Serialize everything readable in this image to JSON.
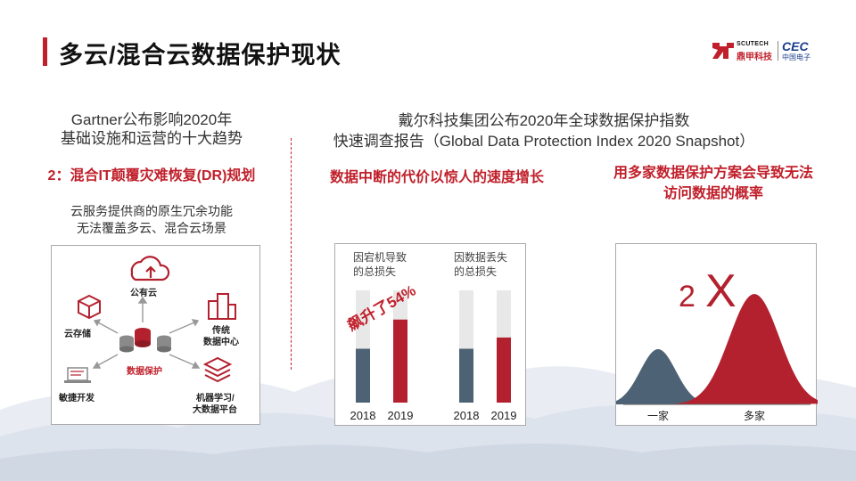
{
  "title": "多云/混合云数据保护现状",
  "logo": {
    "scutech": "SCUTECH",
    "dingjia": "鼎甲科技",
    "cec": "CEC",
    "cec_sub": "中国电子"
  },
  "left": {
    "heading_line1": "Gartner公布影响2020年",
    "heading_line2": "基础设施和运营的十大趋势",
    "highlight": "2：混合IT颠覆灾难恢复(DR)规划",
    "desc_line1": "云服务提供商的原生冗余功能",
    "desc_line2": "无法覆盖多云、混合云场景",
    "diagram": {
      "public_cloud": "公有云",
      "cloud_storage": "云存储",
      "traditional_dc_1": "传统",
      "traditional_dc_2": "数据中心",
      "data_protection": "数据保护",
      "agile_dev": "敏捷开发",
      "ml_1": "机器学习/",
      "ml_2": "大数据平台"
    }
  },
  "right": {
    "heading_line1": "戴尔科技集团公布2020年全球数据保护指数",
    "heading_line2": "快速调查报告（Global Data Protection Index 2020 Snapshot）",
    "mid_highlight": "数据中断的代价以惊人的速度增长",
    "right_highlight_line1": "用多家数据保护方案会导致无法",
    "right_highlight_line2": "访问数据的概率"
  },
  "chart_data": [
    {
      "type": "bar",
      "groups": [
        {
          "label": "因宕机导致的总损失",
          "label_line1": "因宕机导致",
          "label_line2": "的总损失"
        },
        {
          "label": "因数据丢失的总损失",
          "label_line1": "因数据丢失",
          "label_line2": "的总损失"
        }
      ],
      "categories": [
        "2018",
        "2019",
        "2018",
        "2019"
      ],
      "values": [
        0.48,
        0.74,
        0.48,
        0.58
      ],
      "bar_colors": [
        "#4e6275",
        "#b3212f",
        "#4e6275",
        "#b3212f"
      ],
      "track_color": "#e8e8e8",
      "annotation": "飙升了54%",
      "ylim": [
        0,
        1
      ]
    },
    {
      "type": "area",
      "series": [
        {
          "name": "一家",
          "peak": 1,
          "color": "#4e6275"
        },
        {
          "name": "多家",
          "peak": 2,
          "color": "#b3212f"
        }
      ],
      "multiplier_num": "2",
      "multiplier_x": "X"
    }
  ],
  "colors": {
    "accent": "#c0202b",
    "slate": "#4e6275",
    "crimson": "#b3212f"
  }
}
